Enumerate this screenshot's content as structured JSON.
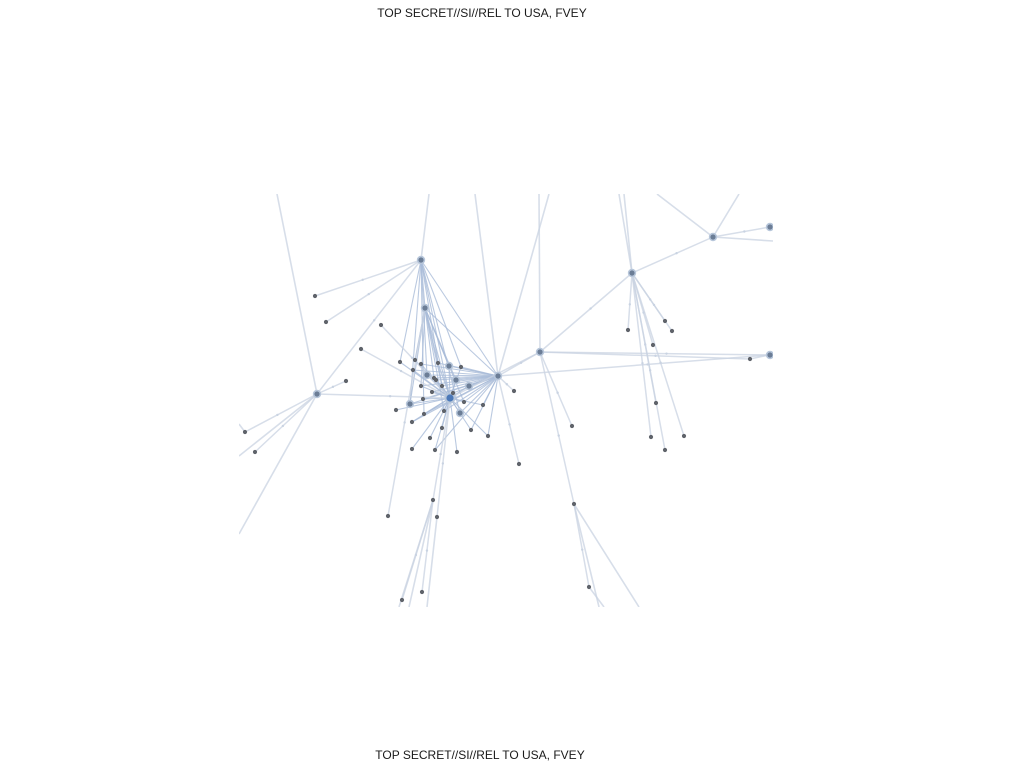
{
  "classification": {
    "top": "TOP SECRET//SI//REL TO USA, FVEY",
    "bottom": "TOP SECRET//SI//REL TO USA, FVEY"
  },
  "graph": {
    "colors": {
      "edge": "#c9d3e2",
      "edge_dense": "#a9bcd8",
      "node": "#5f636a",
      "node_hub": "#6b7d96",
      "node_hub_ring": "#b7c6da",
      "node_core": "#4b78b8"
    }
  }
}
